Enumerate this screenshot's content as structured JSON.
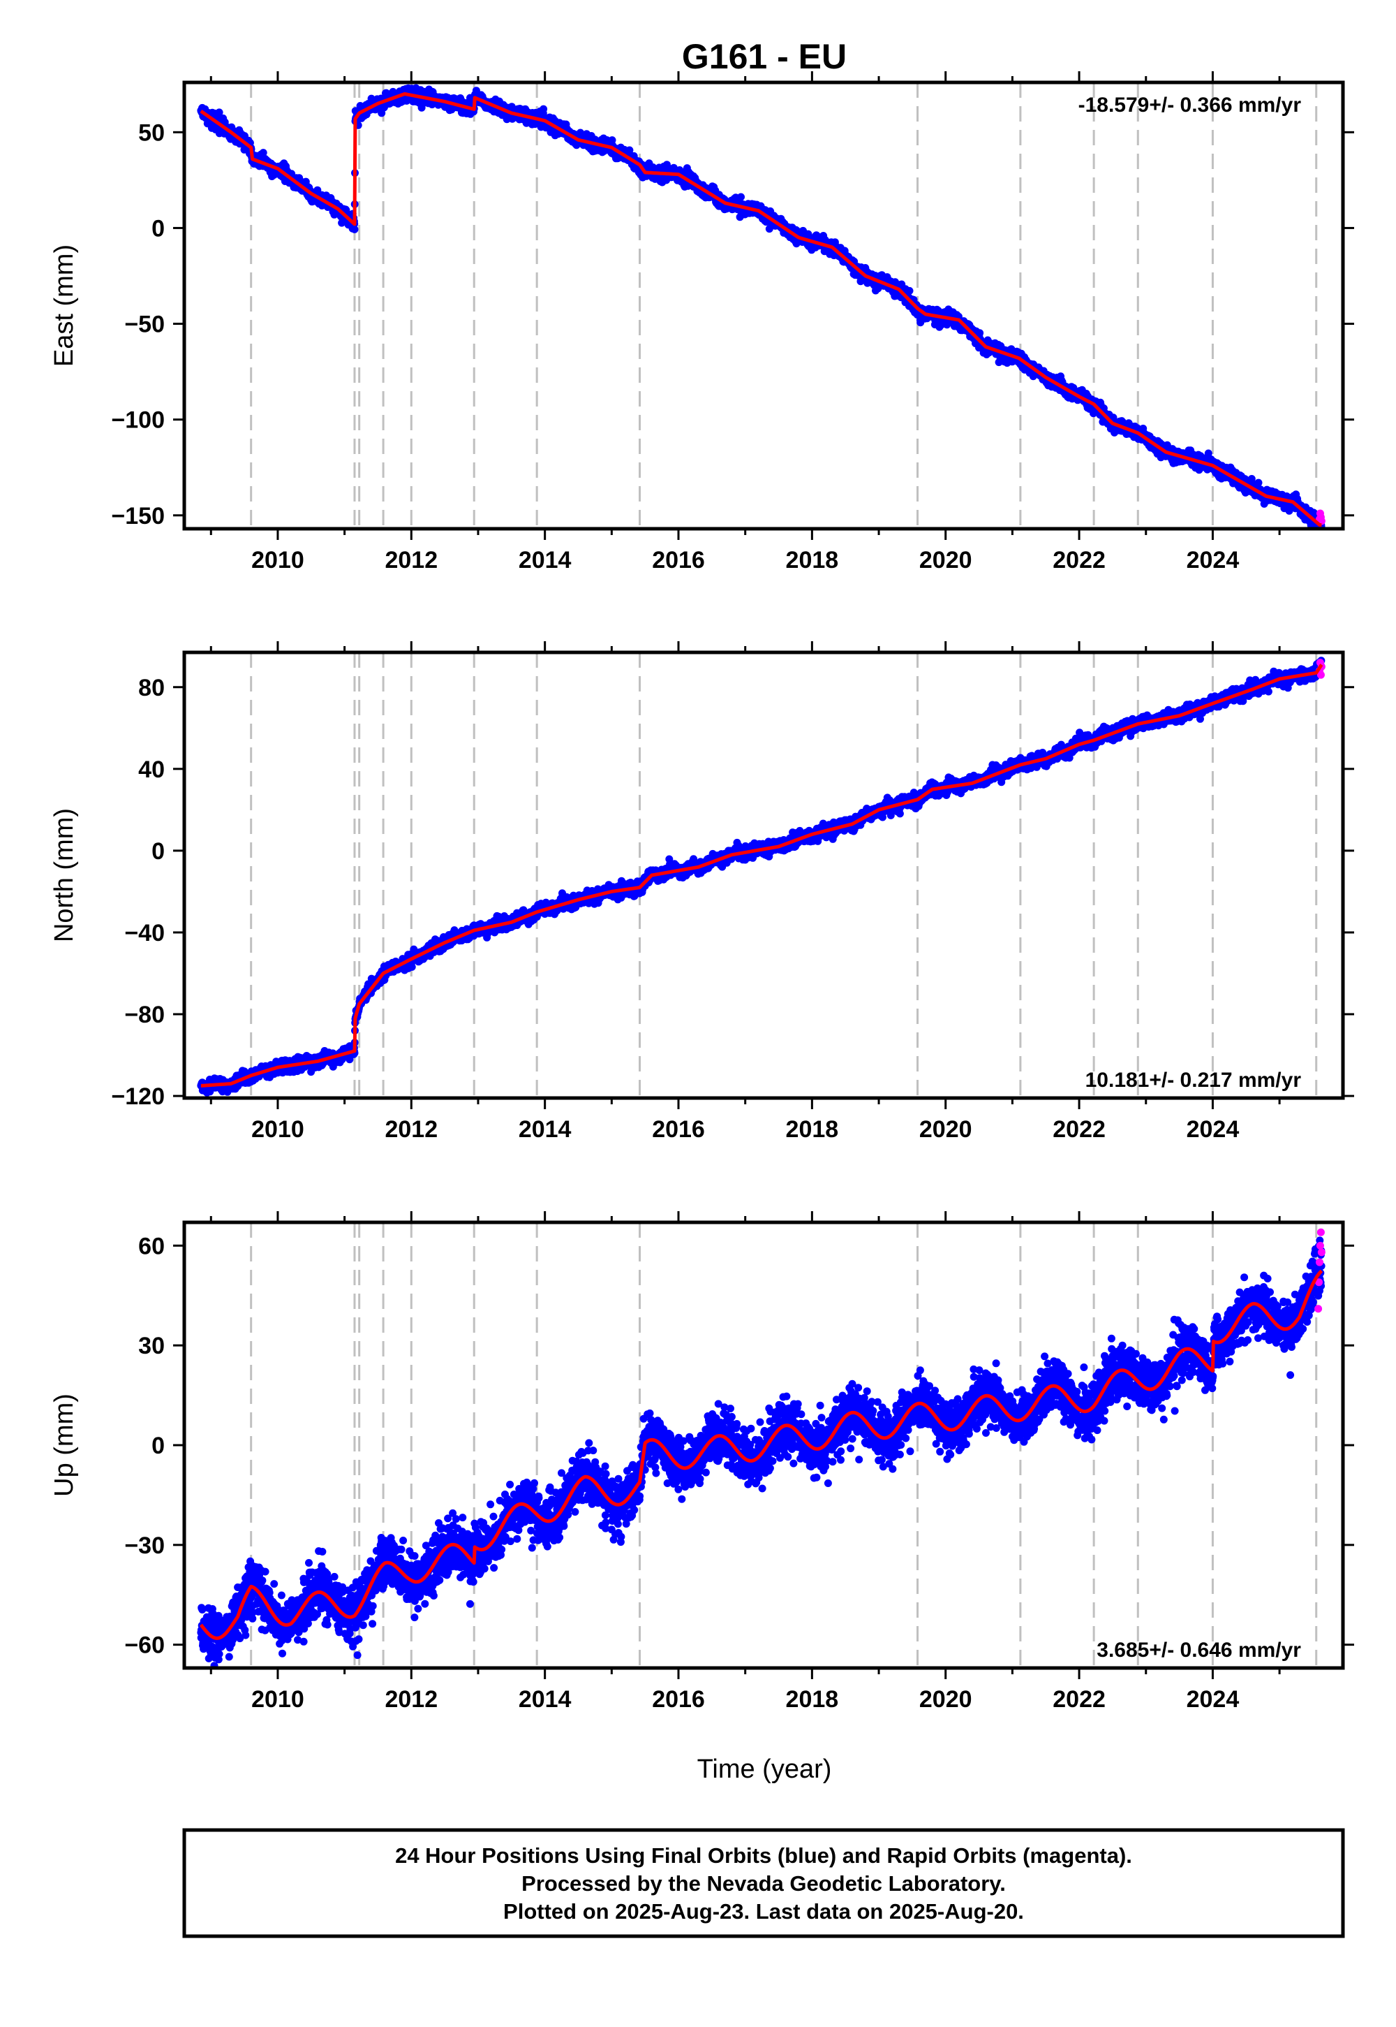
{
  "title": "G161 - EU",
  "x_axis_title": "Time (year)",
  "x_tick_labels": [
    "2010",
    "2012",
    "2014",
    "2016",
    "2018",
    "2020",
    "2022",
    "2024"
  ],
  "colors": {
    "final_orbits": "#0000ff",
    "rapid_orbits": "#ff00ff",
    "model": "#ff0000",
    "event_lines": "#c0c0c0"
  },
  "footer": {
    "line1": "24 Hour Positions Using Final Orbits (blue) and Rapid Orbits (magenta).",
    "line2": "Processed by the Nevada Geodetic Laboratory.",
    "line3": "Plotted on 2025-Aug-23. Last data on 2025-Aug-20."
  },
  "chart_data": [
    {
      "type": "scatter",
      "component": "East",
      "ylabel": "East (mm)",
      "xlim": [
        2008.6,
        2025.95
      ],
      "ylim": [
        -157,
        76
      ],
      "yticks": [
        50,
        0,
        -50,
        -100,
        -150
      ],
      "ytick_labels": [
        "50",
        "0",
        "−50",
        "−100",
        "−150"
      ],
      "rate_text": "-18.579+/- 0.366 mm/yr",
      "rate_position": "top-right",
      "x_range": [
        2008.85,
        2025.63
      ],
      "event_years": [
        2009.6,
        2011.15,
        2011.22,
        2011.58,
        2012.0,
        2012.94,
        2013.88,
        2015.42,
        2019.58,
        2021.12,
        2022.22,
        2022.88,
        2024.0,
        2025.55
      ],
      "model_knots": [
        [
          2008.85,
          61
        ],
        [
          2009.3,
          50
        ],
        [
          2009.6,
          42
        ],
        [
          2009.62,
          36
        ],
        [
          2010.0,
          31
        ],
        [
          2010.5,
          18
        ],
        [
          2010.9,
          10
        ],
        [
          2011.15,
          2
        ],
        [
          2011.16,
          57
        ],
        [
          2011.22,
          60
        ],
        [
          2011.5,
          65
        ],
        [
          2011.9,
          70
        ],
        [
          2012.5,
          66
        ],
        [
          2012.94,
          62
        ],
        [
          2012.95,
          68
        ],
        [
          2013.5,
          60
        ],
        [
          2013.88,
          57
        ],
        [
          2014.0,
          56
        ],
        [
          2014.5,
          46
        ],
        [
          2015.0,
          42
        ],
        [
          2015.42,
          33
        ],
        [
          2015.5,
          29
        ],
        [
          2016.0,
          28
        ],
        [
          2016.7,
          13
        ],
        [
          2017.2,
          9
        ],
        [
          2017.8,
          -5
        ],
        [
          2018.3,
          -10
        ],
        [
          2018.8,
          -25
        ],
        [
          2019.3,
          -32
        ],
        [
          2019.58,
          -42
        ],
        [
          2019.7,
          -45
        ],
        [
          2020.2,
          -48
        ],
        [
          2020.6,
          -62
        ],
        [
          2021.1,
          -68
        ],
        [
          2021.5,
          -78
        ],
        [
          2022.0,
          -88
        ],
        [
          2022.22,
          -92
        ],
        [
          2022.5,
          -102
        ],
        [
          2022.88,
          -107
        ],
        [
          2023.3,
          -117
        ],
        [
          2024.0,
          -124
        ],
        [
          2024.4,
          -132
        ],
        [
          2024.8,
          -140
        ],
        [
          2025.2,
          -143
        ],
        [
          2025.6,
          -155
        ]
      ],
      "noise_sd": 1.6,
      "rapid_points": [
        [
          2025.6,
          -152
        ],
        [
          2025.61,
          -149
        ],
        [
          2025.62,
          -151
        ],
        [
          2025.63,
          -153
        ]
      ]
    },
    {
      "type": "scatter",
      "component": "North",
      "ylabel": "North (mm)",
      "xlim": [
        2008.6,
        2025.95
      ],
      "ylim": [
        -121,
        97
      ],
      "yticks": [
        80,
        40,
        0,
        -40,
        -80,
        -120
      ],
      "ytick_labels": [
        "80",
        "40",
        "0",
        "−40",
        "−80",
        "−120"
      ],
      "rate_text": "10.181+/- 0.217 mm/yr",
      "rate_position": "bottom-right",
      "x_range": [
        2008.85,
        2025.63
      ],
      "event_years": [
        2009.6,
        2011.15,
        2011.22,
        2011.58,
        2012.0,
        2012.94,
        2013.88,
        2015.42,
        2019.58,
        2021.12,
        2022.22,
        2022.88,
        2024.0,
        2025.55
      ],
      "model_knots": [
        [
          2008.85,
          -115
        ],
        [
          2009.3,
          -114
        ],
        [
          2009.6,
          -110
        ],
        [
          2010.0,
          -106
        ],
        [
          2010.6,
          -103
        ],
        [
          2011.15,
          -98
        ],
        [
          2011.16,
          -82
        ],
        [
          2011.22,
          -75
        ],
        [
          2011.58,
          -60
        ],
        [
          2012.0,
          -53
        ],
        [
          2012.5,
          -45
        ],
        [
          2012.94,
          -39
        ],
        [
          2013.5,
          -35
        ],
        [
          2013.88,
          -30
        ],
        [
          2014.5,
          -24
        ],
        [
          2015.0,
          -20
        ],
        [
          2015.42,
          -18
        ],
        [
          2015.6,
          -12
        ],
        [
          2016.3,
          -8
        ],
        [
          2016.8,
          -2
        ],
        [
          2017.5,
          2
        ],
        [
          2018.0,
          8
        ],
        [
          2018.6,
          13
        ],
        [
          2019.0,
          20
        ],
        [
          2019.58,
          25
        ],
        [
          2019.8,
          30
        ],
        [
          2020.4,
          33
        ],
        [
          2021.12,
          42
        ],
        [
          2021.5,
          45
        ],
        [
          2022.0,
          52
        ],
        [
          2022.22,
          54
        ],
        [
          2022.88,
          62
        ],
        [
          2023.5,
          66
        ],
        [
          2024.0,
          72
        ],
        [
          2024.6,
          79
        ],
        [
          2025.0,
          84
        ],
        [
          2025.55,
          87
        ],
        [
          2025.63,
          91
        ]
      ],
      "noise_sd": 1.4,
      "rapid_points": [
        [
          2025.6,
          88
        ],
        [
          2025.61,
          92
        ],
        [
          2025.62,
          86
        ],
        [
          2025.63,
          90
        ]
      ]
    },
    {
      "type": "scatter",
      "component": "Up",
      "ylabel": "Up (mm)",
      "xlim": [
        2008.6,
        2025.95
      ],
      "ylim": [
        -67,
        67
      ],
      "yticks": [
        60,
        30,
        0,
        -30,
        -60
      ],
      "ytick_labels": [
        "60",
        "30",
        "0",
        "−30",
        "−60"
      ],
      "rate_text": "3.685+/- 0.646 mm/yr",
      "rate_position": "bottom-right",
      "x_range": [
        2008.85,
        2025.63
      ],
      "event_years": [
        2009.6,
        2011.15,
        2011.22,
        2011.58,
        2012.0,
        2012.94,
        2013.88,
        2015.42,
        2019.58,
        2021.12,
        2022.22,
        2022.88,
        2024.0,
        2025.55
      ],
      "model_knots": [
        [
          2008.85,
          -54
        ],
        [
          2009.4,
          -53
        ],
        [
          2009.6,
          -47
        ],
        [
          2010.2,
          -50
        ],
        [
          2011.15,
          -47
        ],
        [
          2011.6,
          -40
        ],
        [
          2012.0,
          -37
        ],
        [
          2012.94,
          -33
        ],
        [
          2012.95,
          -28
        ],
        [
          2013.88,
          -20
        ],
        [
          2014.6,
          -14
        ],
        [
          2015.42,
          -13
        ],
        [
          2015.5,
          -3
        ],
        [
          2016.5,
          -2
        ],
        [
          2017.5,
          1
        ],
        [
          2018.5,
          5
        ],
        [
          2019.58,
          8
        ],
        [
          2020.5,
          10
        ],
        [
          2021.12,
          12
        ],
        [
          2022.22,
          15
        ],
        [
          2022.88,
          20
        ],
        [
          2023.5,
          24
        ],
        [
          2024.0,
          26
        ],
        [
          2024.01,
          35
        ],
        [
          2024.6,
          38
        ],
        [
          2025.3,
          40
        ],
        [
          2025.63,
          48
        ]
      ],
      "seasonal_amp": 4.5,
      "noise_sd": 3.8,
      "rapid_points": [
        [
          2025.58,
          41
        ],
        [
          2025.59,
          49
        ],
        [
          2025.6,
          55
        ],
        [
          2025.61,
          60
        ],
        [
          2025.62,
          64
        ],
        [
          2025.63,
          58
        ]
      ]
    }
  ]
}
